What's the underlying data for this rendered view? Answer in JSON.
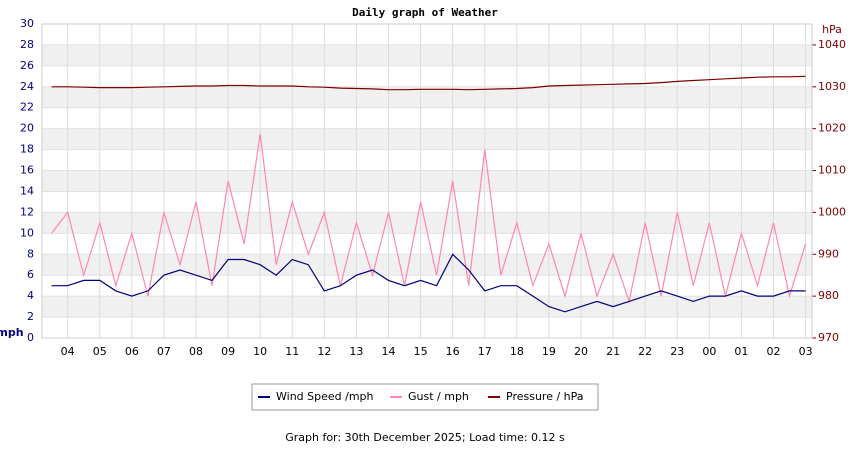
{
  "chart_data": {
    "type": "line",
    "title": "Daily graph of Weather",
    "y_label": "mph",
    "y2_label": "hPa",
    "footer": "Graph for: 30th December 2025; Load time: 0.12 s",
    "x": [
      3.5,
      4,
      4.5,
      5,
      5.5,
      6,
      6.5,
      7,
      7.5,
      8,
      8.5,
      9,
      9.5,
      10,
      10.5,
      11,
      11.5,
      12,
      12.5,
      13,
      13.5,
      14,
      14.5,
      15,
      15.5,
      16,
      16.5,
      17,
      17.5,
      18,
      18.5,
      19,
      19.5,
      20,
      20.5,
      21,
      21.5,
      22,
      22.5,
      23,
      23.5,
      24,
      24.5,
      25,
      25.5,
      26,
      26.5,
      27
    ],
    "xlim": [
      3.2,
      27.2
    ],
    "xticks": [
      {
        "value": 4,
        "label": "04"
      },
      {
        "value": 5,
        "label": "05"
      },
      {
        "value": 6,
        "label": "06"
      },
      {
        "value": 7,
        "label": "07"
      },
      {
        "value": 8,
        "label": "08"
      },
      {
        "value": 9,
        "label": "09"
      },
      10,
      11,
      12,
      13,
      14,
      15,
      16,
      17,
      18,
      19,
      20,
      21,
      22,
      23,
      {
        "value": 24,
        "label": "00"
      },
      {
        "value": 25,
        "label": "01"
      },
      {
        "value": 26,
        "label": "02"
      },
      {
        "value": 27,
        "label": "03"
      }
    ],
    "ylim": [
      0,
      30
    ],
    "yticks": [
      0,
      2,
      4,
      6,
      8,
      10,
      12,
      14,
      16,
      18,
      20,
      22,
      24,
      26,
      28,
      30
    ],
    "y2lim": [
      970,
      1045
    ],
    "y2ticks": [
      970,
      980,
      990,
      1000,
      1010,
      1020,
      1030,
      1040
    ],
    "grid": true,
    "series": [
      {
        "name": "Gust / mph",
        "color": "#ff88aa",
        "values": [
          10,
          12,
          6,
          11,
          5,
          10,
          4,
          12,
          7,
          13,
          5,
          15,
          9,
          19.5,
          7,
          13,
          8,
          12,
          5,
          11,
          6,
          12,
          5,
          13,
          6,
          15,
          5,
          18,
          6,
          11,
          5,
          9,
          4,
          10,
          4,
          8,
          3.5,
          11,
          4,
          12,
          5,
          11,
          4,
          10,
          5,
          11,
          4,
          9
        ]
      },
      {
        "name": "Wind Speed /mph",
        "color": "#000080",
        "values": [
          5,
          5,
          5.5,
          5.5,
          4.5,
          4,
          4.5,
          6,
          6.5,
          6,
          5.5,
          7.5,
          7.5,
          7,
          6,
          7.5,
          7,
          4.5,
          5,
          6,
          6.5,
          5.5,
          5,
          5.5,
          5,
          8,
          6.5,
          4.5,
          5,
          5,
          4,
          3,
          2.5,
          3,
          3.5,
          3,
          3.5,
          4,
          4.5,
          4,
          3.5,
          4,
          4,
          4.5,
          4,
          4,
          4.5,
          4.5
        ]
      },
      {
        "name": "Pressure / hPa",
        "color": "#7f0000",
        "axis": "y2",
        "values": [
          1030,
          1030,
          1029.9,
          1029.8,
          1029.8,
          1029.8,
          1029.9,
          1030,
          1030.1,
          1030.2,
          1030.2,
          1030.3,
          1030.3,
          1030.2,
          1030.2,
          1030.2,
          1030,
          1029.9,
          1029.7,
          1029.6,
          1029.5,
          1029.3,
          1029.3,
          1029.4,
          1029.4,
          1029.4,
          1029.3,
          1029.4,
          1029.5,
          1029.6,
          1029.8,
          1030.2,
          1030.3,
          1030.4,
          1030.5,
          1030.6,
          1030.7,
          1030.8,
          1031,
          1031.3,
          1031.5,
          1031.7,
          1031.9,
          1032.1,
          1032.3,
          1032.4,
          1032.4,
          1032.5
        ]
      }
    ],
    "legend_order": [
      1,
      0,
      2
    ]
  }
}
